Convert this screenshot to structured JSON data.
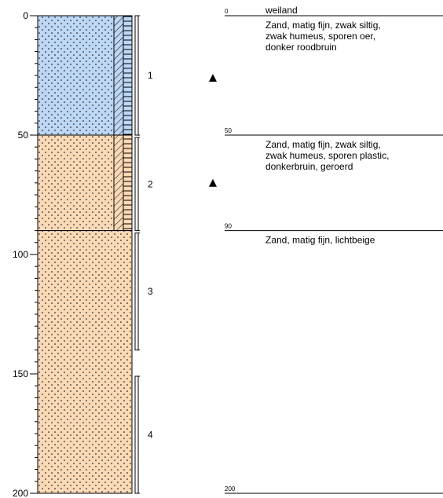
{
  "colors": {
    "clay_sand_blue": "#BDD7F4",
    "sand_orange": "#FAD9B7",
    "line": "#000000"
  },
  "axis": {
    "ticks": [
      {
        "depth": 0,
        "label": "0"
      },
      {
        "depth": 50,
        "label": "50"
      },
      {
        "depth": 100,
        "label": "100"
      },
      {
        "depth": 150,
        "label": "150"
      },
      {
        "depth": 200,
        "label": "200"
      }
    ],
    "range": [
      0,
      200
    ]
  },
  "layers": [
    {
      "top": 0,
      "bottom": 50,
      "color": "#BDD7F4",
      "top_label": "0",
      "description": [
        "weiland"
      ],
      "extra_description": [
        "Zand, matig fijn, zwak siltig,",
        "zwak humeus, sporen oer,",
        "donker roodbruin"
      ],
      "humus_hatch": true
    },
    {
      "top": 50,
      "bottom": 90,
      "color": "#FAD9B7",
      "top_label": "50",
      "description": [],
      "extra_description": [
        "Zand, matig fijn, zwak siltig,",
        "zwak humeus, sporen plastic,",
        "donkerbruin, geroerd"
      ],
      "humus_hatch": true
    },
    {
      "top": 90,
      "bottom": 200,
      "color": "#FAD9B7",
      "top_label": "90",
      "description": [],
      "extra_description": [
        "Zand, matig fijn, lichtbeige"
      ],
      "humus_hatch": false
    }
  ],
  "bottom_label": "200",
  "samples": [
    {
      "top": 0,
      "bottom": 50,
      "label": "1"
    },
    {
      "top": 51,
      "bottom": 90,
      "label": "2"
    },
    {
      "top": 91,
      "bottom": 140,
      "label": "3"
    },
    {
      "top": 151,
      "bottom": 200,
      "label": "4"
    }
  ],
  "markers": [
    {
      "depth": 26,
      "icon": "triangle-up-icon"
    },
    {
      "depth": 70,
      "icon": "triangle-up-icon"
    }
  ]
}
